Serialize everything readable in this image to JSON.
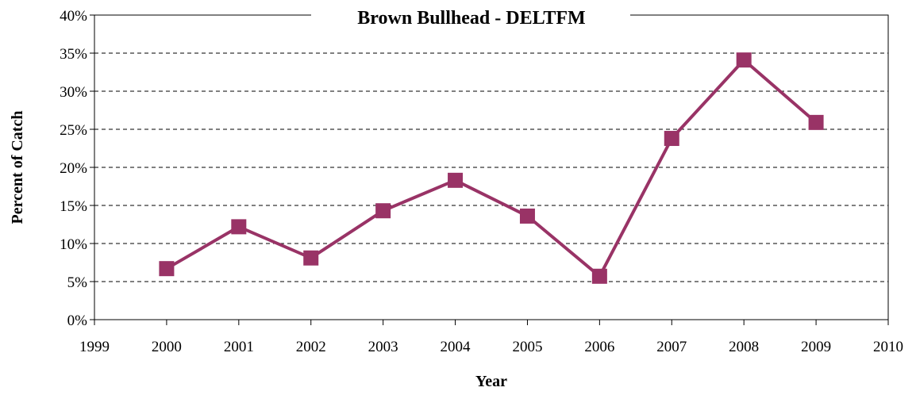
{
  "chart_data": {
    "type": "line",
    "title": "Brown Bullhead - DELTFM",
    "xlabel": "Year",
    "ylabel": "Percent of Catch",
    "xlim": [
      1999,
      2010
    ],
    "ylim": [
      0,
      40
    ],
    "x_ticks": [
      "1999",
      "2000",
      "2001",
      "2002",
      "2003",
      "2004",
      "2005",
      "2006",
      "2007",
      "2008",
      "2009",
      "2010"
    ],
    "y_ticks": [
      "0%",
      "5%",
      "10%",
      "15%",
      "20%",
      "25%",
      "30%",
      "35%",
      "40%"
    ],
    "grid": true,
    "series": [
      {
        "color": "#993366",
        "marker": "square",
        "x": [
          2000,
          2001,
          2002,
          2003,
          2004,
          2005,
          2006,
          2007,
          2008,
          2009
        ],
        "values": [
          6.7,
          12.2,
          8.1,
          14.3,
          18.3,
          13.6,
          5.7,
          23.8,
          34.1,
          25.9
        ]
      }
    ]
  }
}
